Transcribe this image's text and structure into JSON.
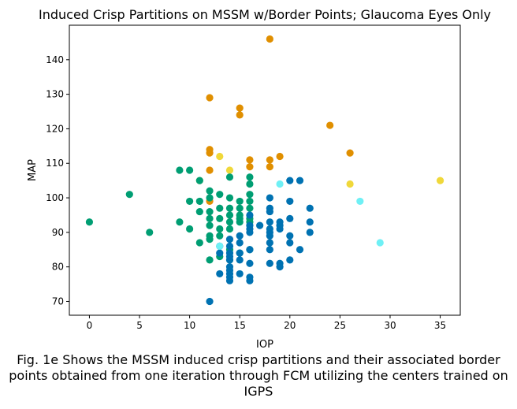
{
  "chart_data": {
    "type": "scatter",
    "title": "Induced Crisp Partitions on MSSM w/Border Points; Glaucoma Eyes Only",
    "xlabel": "IOP",
    "ylabel": "MAP",
    "xlim": [
      -2,
      37
    ],
    "ylim": [
      66,
      150
    ],
    "xticks": [
      0,
      5,
      10,
      15,
      20,
      25,
      30,
      35
    ],
    "yticks": [
      70,
      80,
      90,
      100,
      110,
      120,
      130,
      140
    ],
    "grid": false,
    "legend": "none",
    "series": [
      {
        "color": "#E08F00",
        "points": [
          [
            18,
            146
          ],
          [
            12,
            129
          ],
          [
            15,
            126
          ],
          [
            15,
            124
          ],
          [
            24,
            121
          ],
          [
            12,
            114
          ],
          [
            12,
            113
          ],
          [
            26,
            113
          ],
          [
            16,
            111
          ],
          [
            18,
            111
          ],
          [
            19,
            112
          ],
          [
            16,
            109
          ],
          [
            18,
            109
          ],
          [
            12,
            108
          ],
          [
            12,
            99
          ]
        ]
      },
      {
        "color": "#F0D83A",
        "points": [
          [
            13,
            112
          ],
          [
            14,
            108
          ],
          [
            11,
            105
          ],
          [
            26,
            104
          ],
          [
            35,
            105
          ]
        ]
      },
      {
        "color": "#009E73",
        "points": [
          [
            9,
            108
          ],
          [
            10,
            108
          ],
          [
            11,
            105
          ],
          [
            14,
            106
          ],
          [
            16,
            106
          ],
          [
            16,
            104
          ],
          [
            12,
            102
          ],
          [
            13,
            101
          ],
          [
            16,
            101
          ],
          [
            4,
            101
          ],
          [
            10,
            99
          ],
          [
            11,
            99
          ],
          [
            12,
            100
          ],
          [
            14,
            100
          ],
          [
            15,
            99
          ],
          [
            16,
            99
          ],
          [
            13,
            97
          ],
          [
            14,
            97
          ],
          [
            15,
            97
          ],
          [
            16,
            97
          ],
          [
            11,
            96
          ],
          [
            12,
            96
          ],
          [
            14,
            95
          ],
          [
            15,
            95
          ],
          [
            16,
            94
          ],
          [
            12,
            94
          ],
          [
            13,
            94
          ],
          [
            15,
            94
          ],
          [
            16,
            93
          ],
          [
            0,
            93
          ],
          [
            9,
            93
          ],
          [
            12,
            92
          ],
          [
            14,
            93
          ],
          [
            15,
            93
          ],
          [
            10,
            91
          ],
          [
            13,
            91
          ],
          [
            14,
            91
          ],
          [
            6,
            90
          ],
          [
            12,
            89
          ],
          [
            13,
            89
          ],
          [
            12,
            88
          ],
          [
            11,
            87
          ],
          [
            14,
            85
          ],
          [
            16,
            85
          ],
          [
            13,
            83
          ],
          [
            12,
            82
          ],
          [
            14,
            82
          ],
          [
            15,
            84
          ]
        ]
      },
      {
        "color": "#0072B2",
        "points": [
          [
            20,
            105
          ],
          [
            21,
            105
          ],
          [
            18,
            100
          ],
          [
            20,
            99
          ],
          [
            18,
            97
          ],
          [
            22,
            97
          ],
          [
            18,
            96
          ],
          [
            16,
            95
          ],
          [
            20,
            94
          ],
          [
            18,
            93
          ],
          [
            19,
            93
          ],
          [
            22,
            93
          ],
          [
            16,
            92
          ],
          [
            17,
            92
          ],
          [
            19,
            92
          ],
          [
            16,
            91
          ],
          [
            18,
            91
          ],
          [
            19,
            91
          ],
          [
            16,
            90
          ],
          [
            18,
            90
          ],
          [
            22,
            90
          ],
          [
            15,
            89
          ],
          [
            18,
            89
          ],
          [
            20,
            89
          ],
          [
            14,
            88
          ],
          [
            18,
            87
          ],
          [
            20,
            87
          ],
          [
            15,
            87
          ],
          [
            13,
            86
          ],
          [
            14,
            86
          ],
          [
            16,
            85
          ],
          [
            18,
            85
          ],
          [
            21,
            85
          ],
          [
            13,
            84
          ],
          [
            14,
            84
          ],
          [
            15,
            84
          ],
          [
            14,
            83
          ],
          [
            15,
            82
          ],
          [
            14,
            82
          ],
          [
            16,
            81
          ],
          [
            18,
            81
          ],
          [
            19,
            81
          ],
          [
            20,
            82
          ],
          [
            19,
            80
          ],
          [
            14,
            80
          ],
          [
            14,
            79
          ],
          [
            13,
            78
          ],
          [
            14,
            78
          ],
          [
            15,
            78
          ],
          [
            14,
            77
          ],
          [
            16,
            77
          ],
          [
            14,
            76
          ],
          [
            16,
            76
          ],
          [
            12,
            70
          ]
        ]
      },
      {
        "color": "#6FF0F5",
        "points": [
          [
            19,
            104
          ],
          [
            27,
            99
          ],
          [
            29,
            87
          ],
          [
            13,
            86
          ]
        ]
      }
    ]
  },
  "caption": "Fig. 1e Shows the MSSM induced crisp partitions and their associated border points obtained from one iteration through FCM utilizing the centers trained on IGPS"
}
